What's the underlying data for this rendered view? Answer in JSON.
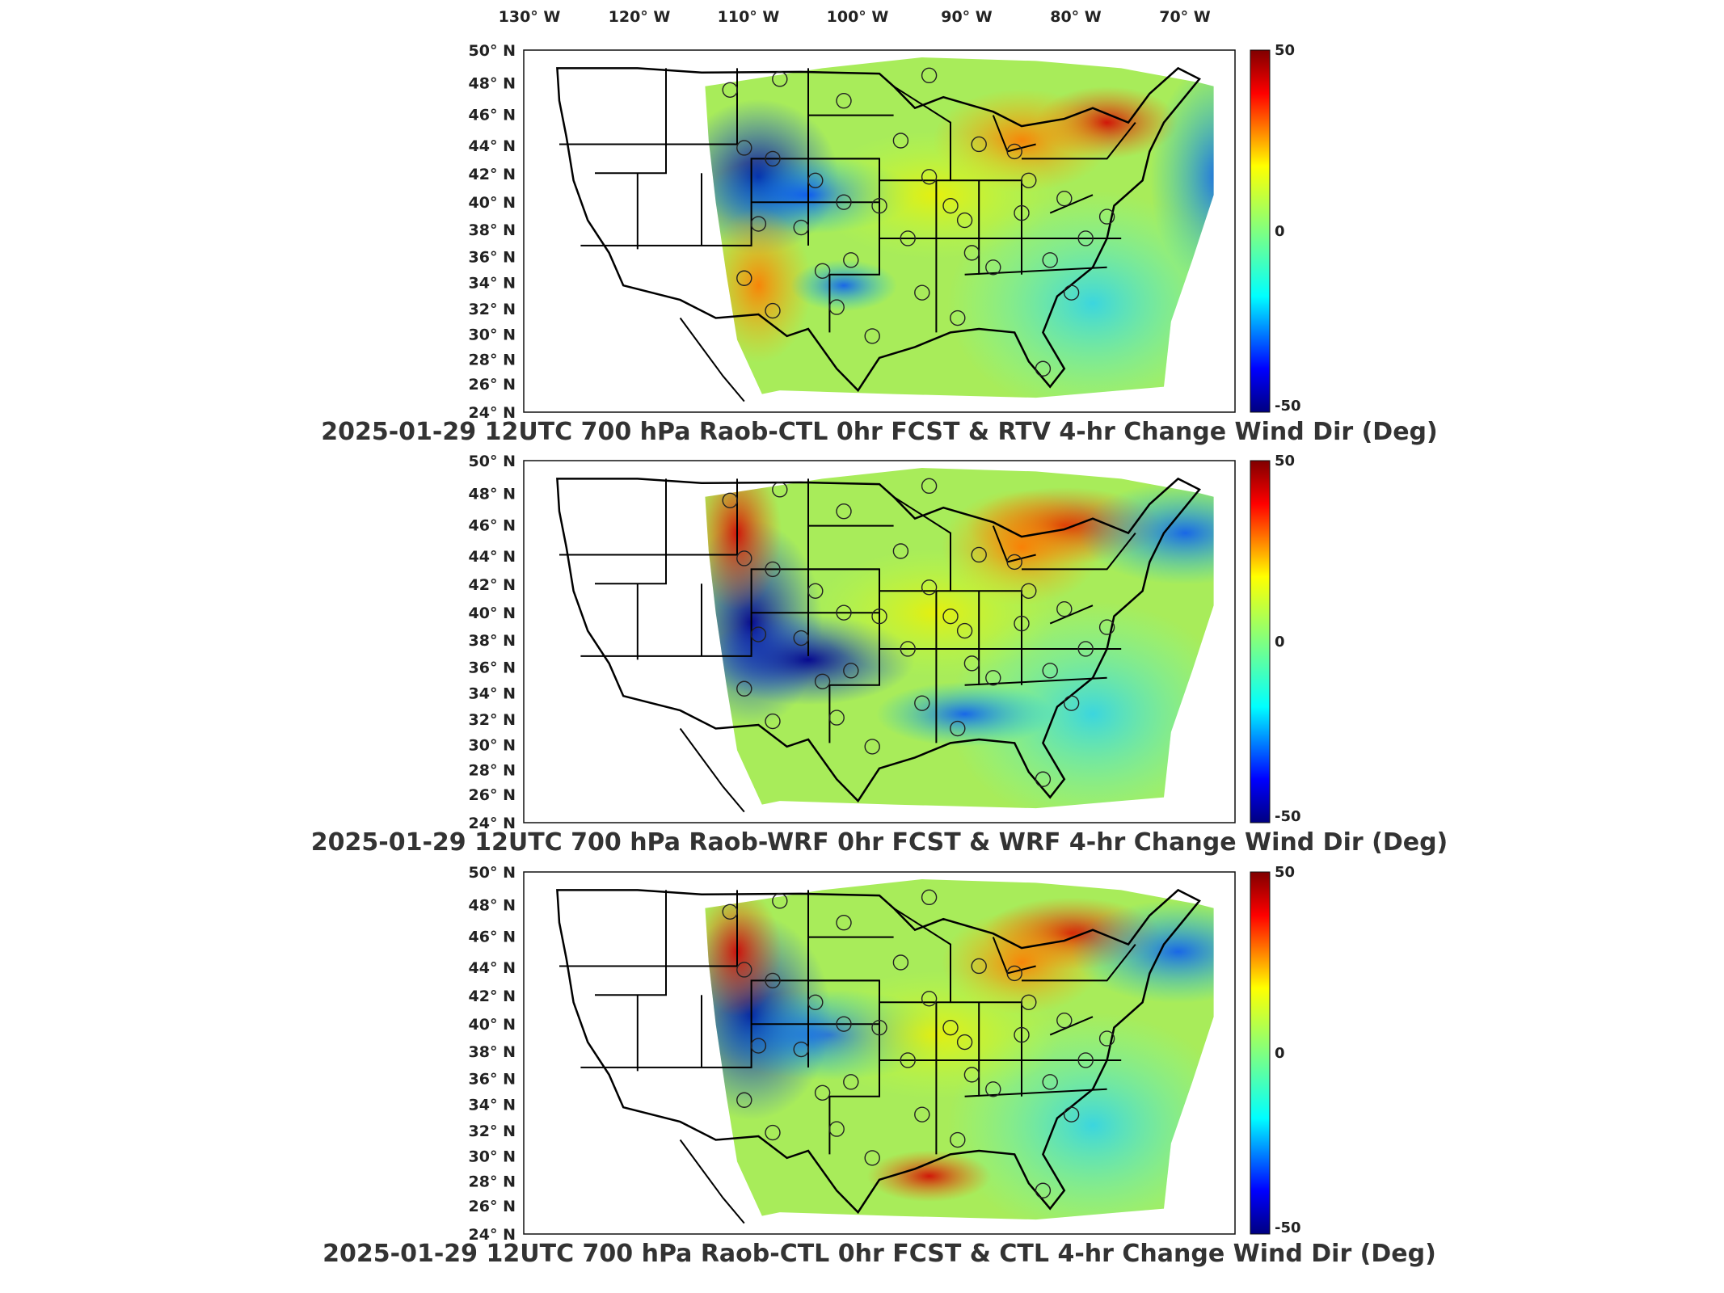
{
  "lon_ticks": [
    "130° W",
    "120° W",
    "110° W",
    "100° W",
    "90° W",
    "80° W",
    "70° W"
  ],
  "lat_ticks": [
    "50° N",
    "48° N",
    "46° N",
    "44° N",
    "42° N",
    "40° N",
    "38° N",
    "36° N",
    "34° N",
    "32° N",
    "30° N",
    "28° N",
    "26° N",
    "24° N"
  ],
  "colorbar": {
    "max_label": "50",
    "mid_label": "0",
    "min_label": "-50",
    "colors": [
      "#800000",
      "#ff0000",
      "#ff8000",
      "#ffff00",
      "#80ff80",
      "#00ffff",
      "#0080ff",
      "#0000ff",
      "#000080"
    ]
  },
  "panels": [
    {
      "title": "2025-01-29 12UTC 700 hPa Raob-CTL 0hr FCST & RTV 4-hr Change Wind Dir (Deg)"
    },
    {
      "title": "2025-01-29 12UTC 700 hPa Raob-WRF 0hr FCST & WRF 4-hr Change Wind Dir (Deg)"
    },
    {
      "title": "2025-01-29 12UTC 700 hPa Raob-CTL 0hr FCST & CTL 4-hr Change Wind Dir (Deg)"
    }
  ]
}
